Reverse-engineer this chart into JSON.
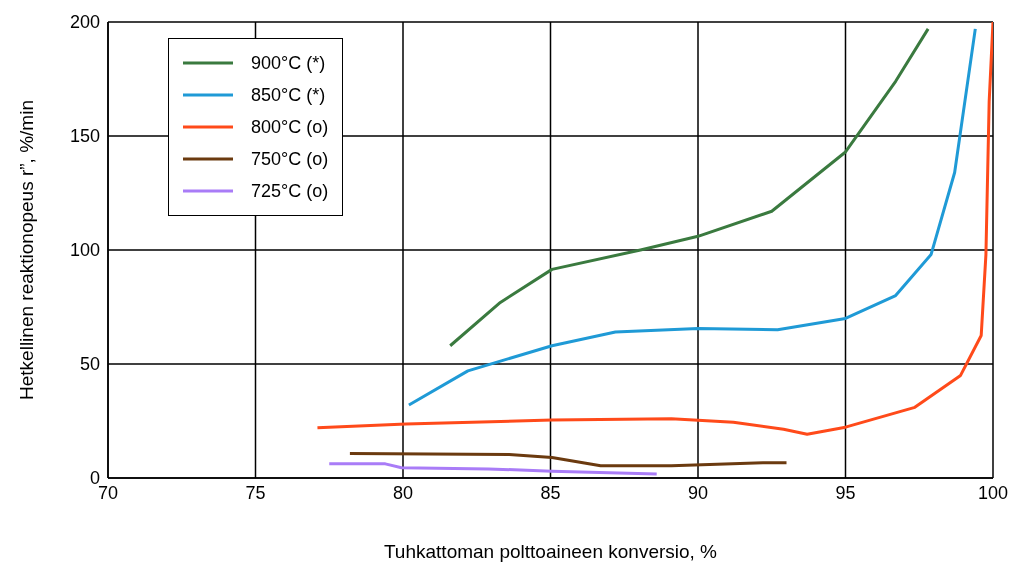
{
  "chart_data": {
    "type": "line",
    "xlabel": "Tuhkattoman polttoaineen konversio, %",
    "ylabel": "Hetkellinen reaktionopeus r”, %/min",
    "xlim": [
      70,
      100
    ],
    "xticks": [
      70,
      75,
      80,
      85,
      90,
      95,
      100
    ],
    "ylim": [
      0,
      200
    ],
    "yticks": [
      0,
      50,
      100,
      150,
      200
    ],
    "grid": true,
    "legend": "top left",
    "marker": "none",
    "line_style": "solid",
    "series": [
      {
        "name": "900°C (*)",
        "color": "#3a7a3f",
        "x": [
          81.6,
          83.3,
          85.05,
          88.05,
          90,
          92.5,
          95,
          96.7,
          97.8
        ],
        "values": [
          58,
          77,
          91.5,
          100,
          106,
          117,
          143,
          174,
          197
        ]
      },
      {
        "name": "850°C (*)",
        "color": "#1f9ad6",
        "x": [
          80.2,
          82.2,
          85.05,
          87.2,
          90,
          92.7,
          95,
          96.7,
          97.9,
          98.7,
          99.4
        ],
        "values": [
          32,
          47,
          58,
          64,
          65.6,
          65,
          70,
          80,
          98,
          134,
          197
        ]
      },
      {
        "name": "800°C (o)",
        "color": "#ff4a1a",
        "x": [
          77.1,
          80.1,
          85.05,
          89.1,
          91.2,
          92.9,
          93.7,
          95,
          97.35,
          98.9,
          99.6,
          99.76,
          99.87,
          100
        ],
        "values": [
          22,
          23.7,
          25.4,
          26,
          24.5,
          21.4,
          19.2,
          22.3,
          31,
          45,
          62.5,
          98,
          165,
          200
        ]
      },
      {
        "name": "750°C (o)",
        "color": "#6b3a0f",
        "x": [
          78.2,
          83.6,
          85.05,
          86.7,
          89.1,
          92.2,
          93
        ],
        "values": [
          10.7,
          10.3,
          9,
          5.4,
          5.4,
          6.7,
          6.7
        ]
      },
      {
        "name": "725°C (o)",
        "color": "#a97cf7",
        "x": [
          77.5,
          79.4,
          79.95,
          82.9,
          85.05,
          88.6
        ],
        "values": [
          6.2,
          6.2,
          4.5,
          4,
          3,
          1.8
        ]
      }
    ]
  }
}
